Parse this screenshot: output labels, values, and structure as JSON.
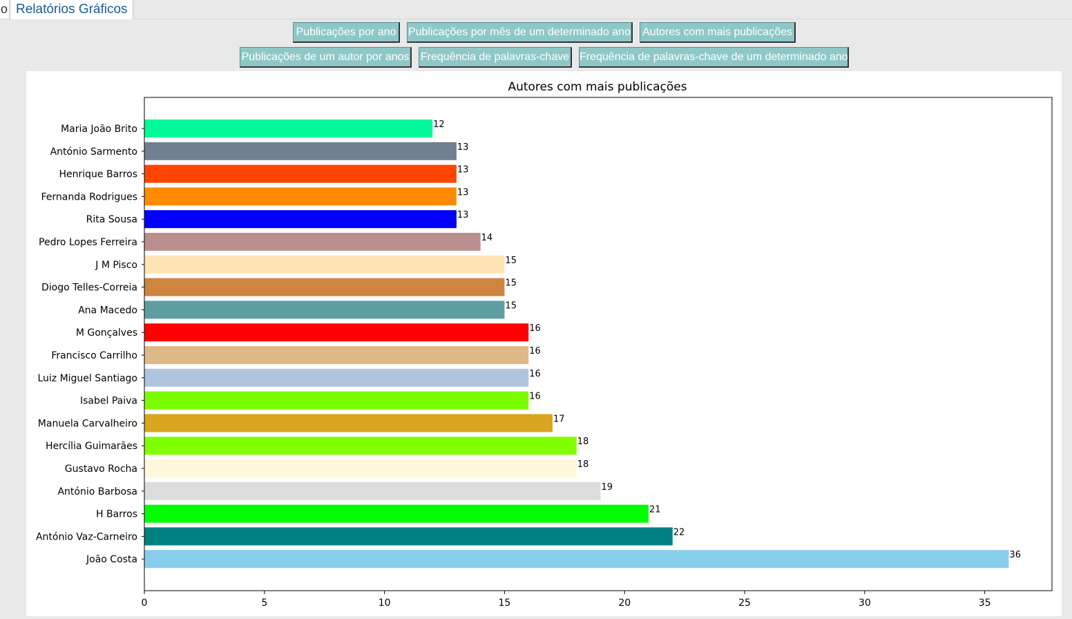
{
  "tabs": {
    "partial_label": "o",
    "active_label": "Relatórios Gráficos"
  },
  "buttons_row1": [
    "Publicações por ano",
    "Publicações por mês de um determinado ano",
    "Autores com mais publicações"
  ],
  "buttons_row2": [
    "Publicações de um autor por anos",
    "Frequência de palavras-chave",
    "Frequência de palavras-chave de um determinado ano"
  ],
  "chart_data": {
    "type": "bar",
    "orientation": "horizontal",
    "title": "Autores com mais publicações",
    "xlabel": "",
    "ylabel": "",
    "xlim": [
      0,
      37.8
    ],
    "xticks": [
      0,
      5,
      10,
      15,
      20,
      25,
      30,
      35
    ],
    "grid": false,
    "categories": [
      "Maria João Brito",
      "António Sarmento",
      "Henrique Barros",
      "Fernanda Rodrigues",
      "Rita Sousa",
      "Pedro Lopes Ferreira",
      "J M Pisco",
      "Diogo Telles-Correia",
      "Ana Macedo",
      "M Gonçalves",
      "Francisco Carrilho",
      "Luiz Miguel Santiago",
      "Isabel Paiva",
      "Manuela Carvalheiro",
      "Hercília Guimarães",
      "Gustavo Rocha",
      "António Barbosa",
      "H Barros",
      "António Vaz-Carneiro",
      "João Costa"
    ],
    "values": [
      12,
      13,
      13,
      13,
      13,
      14,
      15,
      15,
      15,
      16,
      16,
      16,
      16,
      17,
      18,
      18,
      19,
      21,
      22,
      36
    ],
    "colors": [
      "#00fa9a",
      "#708090",
      "#ff4500",
      "#ff8c00",
      "#0000ff",
      "#bc8f8f",
      "#ffe4b5",
      "#cd853f",
      "#5f9ea0",
      "#ff0000",
      "#deb887",
      "#b0c4de",
      "#7cfc00",
      "#daa520",
      "#7fff00",
      "#fff8dc",
      "#dcdcdc",
      "#00ff00",
      "#008080",
      "#87ceeb"
    ]
  }
}
